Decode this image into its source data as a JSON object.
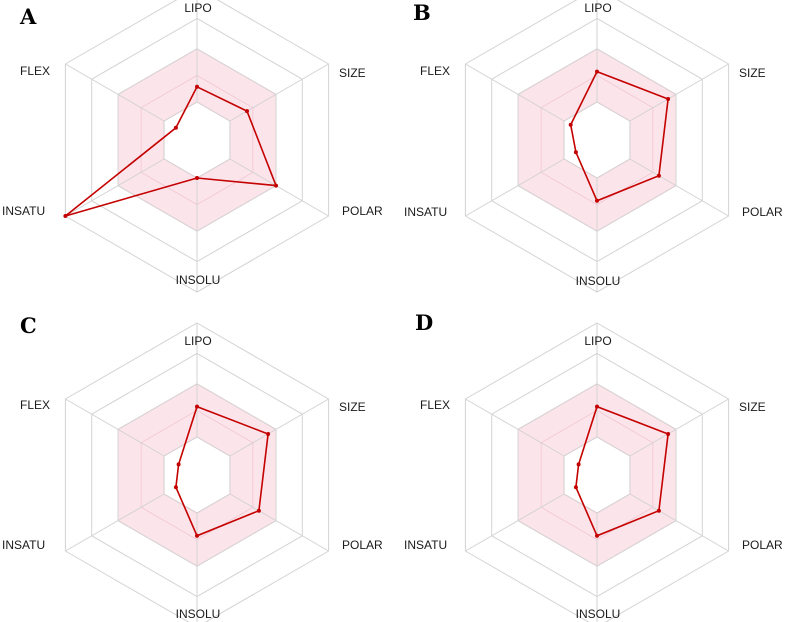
{
  "axes": [
    "LIPO",
    "SIZE",
    "POLAR",
    "INSOLU",
    "INSATU",
    "FLEX"
  ],
  "chart_data": [
    {
      "type": "radar",
      "panel": "A",
      "axes": [
        "LIPO",
        "SIZE",
        "POLAR",
        "INSOLU",
        "INSATU",
        "FLEX"
      ],
      "rlim": [
        0,
        1
      ],
      "optimal_range": {
        "min": 0.25,
        "max": 0.6
      },
      "grid": true,
      "values": [
        0.35,
        0.38,
        0.6,
        0.25,
        1.0,
        0.16
      ]
    },
    {
      "type": "radar",
      "panel": "B",
      "axes": [
        "LIPO",
        "SIZE",
        "POLAR",
        "INSOLU",
        "INSATU",
        "FLEX"
      ],
      "rlim": [
        0,
        1
      ],
      "optimal_range": {
        "min": 0.25,
        "max": 0.6
      },
      "grid": true,
      "values": [
        0.45,
        0.54,
        0.47,
        0.4,
        0.16,
        0.2
      ]
    },
    {
      "type": "radar",
      "panel": "C",
      "axes": [
        "LIPO",
        "SIZE",
        "POLAR",
        "INSOLU",
        "INSATU",
        "FLEX"
      ],
      "rlim": [
        0,
        1
      ],
      "optimal_range": {
        "min": 0.25,
        "max": 0.6
      },
      "grid": true,
      "values": [
        0.45,
        0.54,
        0.47,
        0.4,
        0.16,
        0.14
      ]
    },
    {
      "type": "radar",
      "panel": "D",
      "axes": [
        "LIPO",
        "SIZE",
        "POLAR",
        "INSOLU",
        "INSATU",
        "FLEX"
      ],
      "rlim": [
        0,
        1
      ],
      "optimal_range": {
        "min": 0.25,
        "max": 0.6
      },
      "grid": true,
      "values": [
        0.45,
        0.54,
        0.47,
        0.4,
        0.16,
        0.14
      ]
    }
  ],
  "colors": {
    "series": "#c40000",
    "optimal_band": "#fbdfe7",
    "grid": "#d3d3d3"
  }
}
